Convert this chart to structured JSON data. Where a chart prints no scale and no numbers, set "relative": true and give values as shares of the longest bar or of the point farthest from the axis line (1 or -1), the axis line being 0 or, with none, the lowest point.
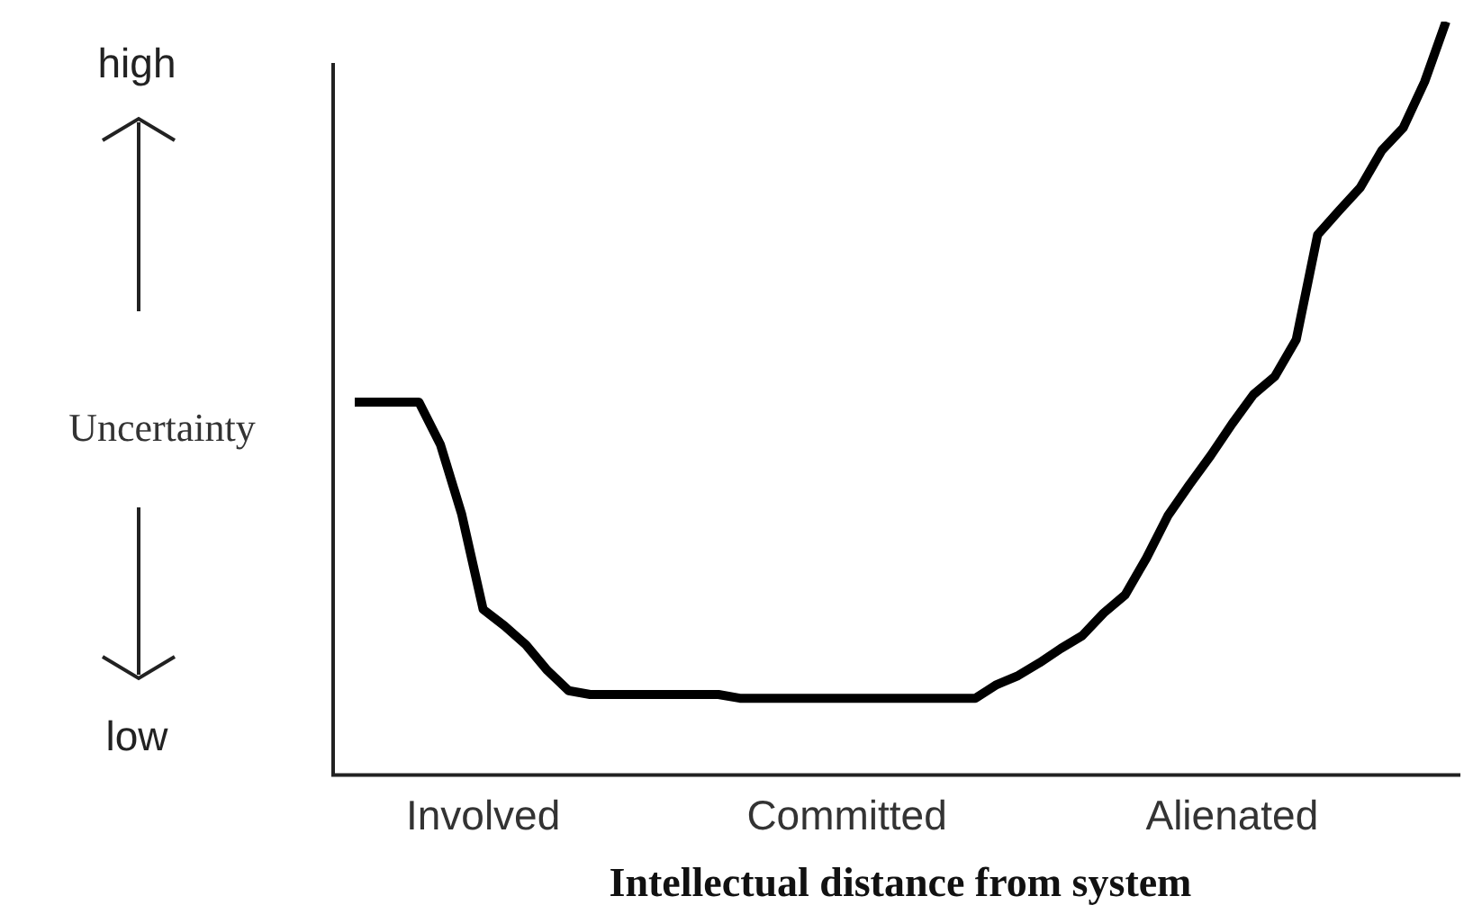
{
  "chart_data": {
    "type": "line",
    "relative": true,
    "ylabel": "Uncertainty",
    "xlabel": "Intellectual distance from system",
    "annotations": [
      "high",
      "low"
    ],
    "categories": [
      null,
      null,
      null,
      null,
      null,
      null,
      "Involved",
      null,
      null,
      null,
      null,
      null,
      null,
      null,
      null,
      null,
      null,
      null,
      null,
      null,
      null,
      null,
      null,
      "Committed",
      null,
      null,
      null,
      null,
      null,
      null,
      null,
      null,
      null,
      null,
      null,
      null,
      null,
      null,
      null,
      null,
      null,
      "Alienated",
      null,
      null,
      null,
      null,
      null,
      null,
      null,
      null,
      null,
      null
    ],
    "series": [
      {
        "color": "#000000",
        "values": [
          0.495,
          0.495,
          0.495,
          0.495,
          0.439,
          0.346,
          0.22,
          0.198,
          0.173,
          0.139,
          0.112,
          0.107,
          0.107,
          0.107,
          0.107,
          0.107,
          0.107,
          0.107,
          0.102,
          0.102,
          0.102,
          0.102,
          0.102,
          0.102,
          0.102,
          0.102,
          0.102,
          0.102,
          0.102,
          0.102,
          0.12,
          0.132,
          0.149,
          0.168,
          0.185,
          0.215,
          0.239,
          0.288,
          0.344,
          0.385,
          0.424,
          0.466,
          0.505,
          0.529,
          0.578,
          0.717,
          0.749,
          0.78,
          0.829,
          0.859,
          0.92,
          1
        ]
      }
    ],
    "legend": false,
    "grid": false
  }
}
